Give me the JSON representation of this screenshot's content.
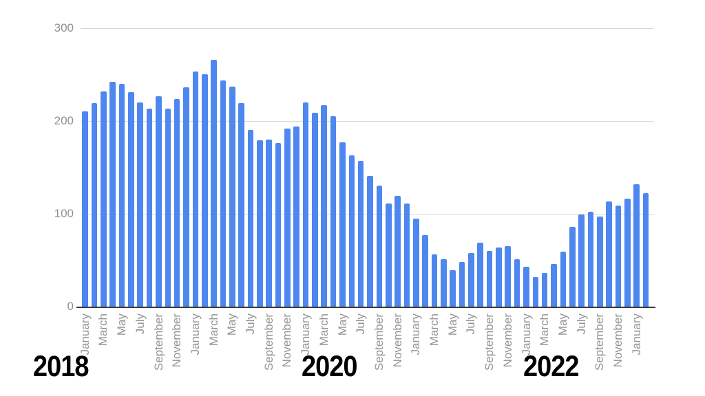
{
  "chart_data": {
    "type": "bar",
    "title": "",
    "xlabel": "",
    "ylabel": "",
    "bar_color": "#4d87ef",
    "grid": true,
    "legend": "none",
    "ylim": [
      0,
      300
    ],
    "yticks": [
      0,
      100,
      200,
      300
    ],
    "x": [
      "Jan 2018",
      "Feb 2018",
      "Mar 2018",
      "Apr 2018",
      "May 2018",
      "Jun 2018",
      "Jul 2018",
      "Aug 2018",
      "Sep 2018",
      "Oct 2018",
      "Nov 2018",
      "Dec 2018",
      "Jan 2019",
      "Feb 2019",
      "Mar 2019",
      "Apr 2019",
      "May 2019",
      "Jun 2019",
      "Jul 2019",
      "Aug 2019",
      "Sep 2019",
      "Oct 2019",
      "Nov 2019",
      "Dec 2019",
      "Jan 2020",
      "Feb 2020",
      "Mar 2020",
      "Apr 2020",
      "May 2020",
      "Jun 2020",
      "Jul 2020",
      "Aug 2020",
      "Sep 2020",
      "Oct 2020",
      "Nov 2020",
      "Dec 2020",
      "Jan 2021",
      "Feb 2021",
      "Mar 2021",
      "Apr 2021",
      "May 2021",
      "Jun 2021",
      "Jul 2021",
      "Aug 2021",
      "Sep 2021",
      "Oct 2021",
      "Nov 2021",
      "Dec 2021",
      "Jan 2022",
      "Feb 2022",
      "Mar 2022",
      "Apr 2022",
      "May 2022",
      "Jun 2022",
      "Jul 2022",
      "Aug 2022",
      "Sep 2022",
      "Oct 2022",
      "Nov 2022",
      "Dec 2022",
      "Jan 2023",
      "Feb 2023"
    ],
    "values": [
      210,
      219,
      232,
      242,
      240,
      231,
      220,
      213,
      227,
      213,
      224,
      236,
      253,
      250,
      266,
      244,
      237,
      219,
      190,
      179,
      180,
      176,
      192,
      194,
      220,
      209,
      217,
      205,
      177,
      163,
      157,
      141,
      130,
      111,
      119,
      111,
      95,
      77,
      56,
      51,
      39,
      48,
      58,
      69,
      60,
      64,
      65,
      51,
      43,
      32,
      36,
      46,
      59,
      86,
      99,
      102,
      97,
      113,
      109,
      116,
      132,
      122
    ],
    "x_tick_labels": [
      "January",
      "",
      "March",
      "",
      "May",
      "",
      "July",
      "",
      "September",
      "",
      "November",
      "",
      "January",
      "",
      "March",
      "",
      "May",
      "",
      "July",
      "",
      "September",
      "",
      "November",
      "",
      "January",
      "",
      "March",
      "",
      "May",
      "",
      "July",
      "",
      "September",
      "",
      "November",
      "",
      "January",
      "",
      "March",
      "",
      "May",
      "",
      "July",
      "",
      "September",
      "",
      "November",
      "",
      "January",
      "",
      "March",
      "",
      "May",
      "",
      "July",
      "",
      "September",
      "",
      "November",
      "",
      "January",
      ""
    ],
    "year_labels": [
      {
        "text": "2018",
        "x": 48
      },
      {
        "text": "2020",
        "x": 438
      },
      {
        "text": "2022",
        "x": 760
      }
    ]
  }
}
